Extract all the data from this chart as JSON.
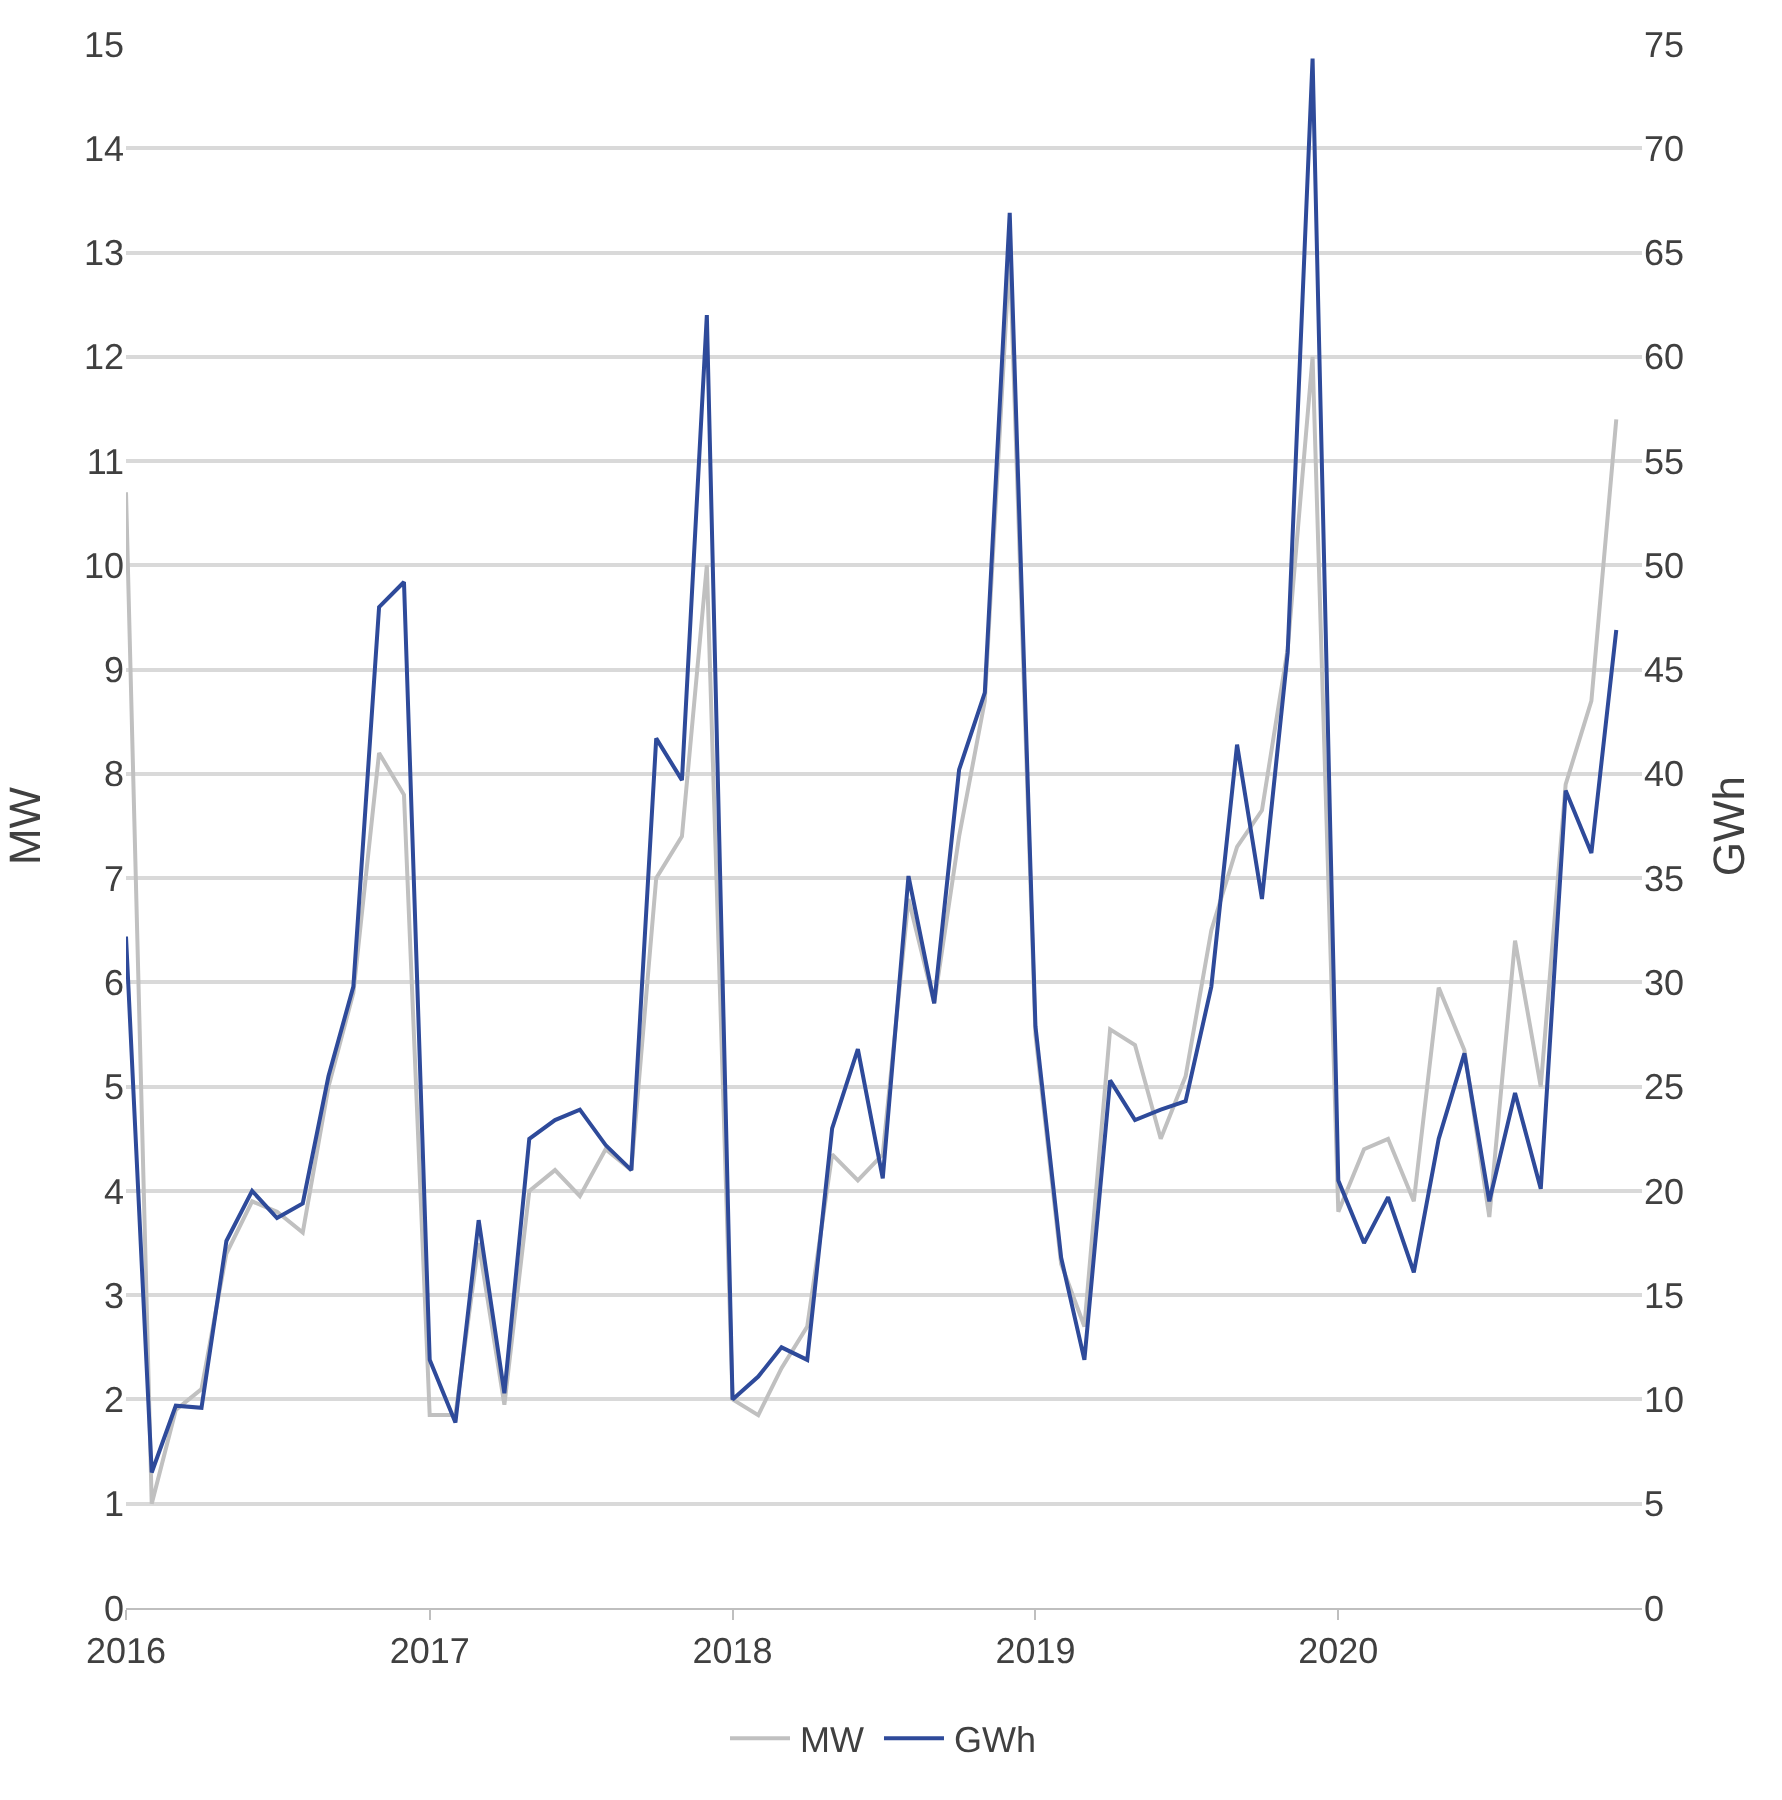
{
  "chart_data": {
    "type": "line",
    "ylabel": "MW",
    "y2label": "GWh",
    "x": [
      "2016-01",
      "2016-02",
      "2016-03",
      "2016-04",
      "2016-05",
      "2016-06",
      "2016-07",
      "2016-08",
      "2016-09",
      "2016-10",
      "2016-11",
      "2016-12",
      "2017-01",
      "2017-02",
      "2017-03",
      "2017-04",
      "2017-05",
      "2017-06",
      "2017-07",
      "2017-08",
      "2017-09",
      "2017-10",
      "2017-11",
      "2017-12",
      "2018-01",
      "2018-02",
      "2018-03",
      "2018-04",
      "2018-05",
      "2018-06",
      "2018-07",
      "2018-08",
      "2018-09",
      "2018-10",
      "2018-11",
      "2018-12",
      "2019-01",
      "2019-02",
      "2019-03",
      "2019-04",
      "2019-05",
      "2019-06",
      "2019-07",
      "2019-08",
      "2019-09",
      "2019-10",
      "2019-11",
      "2019-12",
      "2020-01",
      "2020-02",
      "2020-03",
      "2020-04",
      "2020-05",
      "2020-06",
      "2020-07",
      "2020-08",
      "2020-09",
      "2020-10",
      "2020-11",
      "2020-12"
    ],
    "series": [
      {
        "name": "MW",
        "color": "#c0c0c0",
        "values": [
          10.7,
          1.0,
          1.9,
          2.1,
          3.4,
          3.9,
          3.8,
          3.6,
          5.0,
          5.9,
          8.2,
          7.8,
          1.85,
          1.85,
          3.5,
          1.95,
          4.0,
          4.2,
          3.95,
          4.4,
          4.2,
          7.0,
          7.4,
          10.0,
          2.0,
          1.85,
          2.3,
          2.7,
          4.35,
          4.1,
          4.35,
          6.8,
          5.8,
          7.4,
          8.7,
          13.0,
          5.5,
          3.3,
          2.7,
          5.55,
          5.4,
          4.5,
          5.1,
          6.5,
          7.3,
          7.65,
          9.2,
          12.0,
          3.8,
          4.4,
          4.5,
          3.9,
          5.95,
          5.35,
          3.75,
          6.4,
          5.0,
          7.9,
          8.7,
          11.4
        ]
      },
      {
        "name": "GWh",
        "color": "#2e4a9a",
        "axis": "y2",
        "values": [
          32.2,
          6.5,
          9.7,
          9.6,
          17.6,
          20.0,
          18.7,
          19.4,
          25.5,
          29.8,
          48.0,
          49.2,
          11.9,
          8.9,
          18.6,
          10.3,
          22.5,
          23.4,
          23.9,
          22.2,
          21.0,
          41.7,
          39.7,
          62.0,
          10.0,
          11.1,
          12.5,
          11.9,
          23.0,
          26.8,
          20.6,
          35.1,
          29.0,
          40.2,
          43.9,
          66.9,
          27.9,
          16.8,
          11.9,
          25.3,
          23.4,
          23.9,
          24.3,
          29.8,
          41.4,
          34.0,
          45.8,
          74.3,
          20.5,
          17.5,
          19.7,
          16.1,
          22.5,
          26.6,
          19.5,
          24.7,
          20.1,
          39.2,
          36.2,
          46.9
        ]
      }
    ],
    "xlim": [
      "2016-01",
      "2021-01"
    ],
    "xticks": [
      "2016",
      "2017",
      "2018",
      "2019",
      "2020"
    ],
    "ylim": [
      0,
      15
    ],
    "yticks": [
      0,
      1,
      2,
      3,
      4,
      5,
      6,
      7,
      8,
      9,
      10,
      11,
      12,
      13,
      14,
      15
    ],
    "y2lim": [
      0,
      75
    ],
    "y2ticks": [
      0,
      5,
      10,
      15,
      20,
      25,
      30,
      35,
      40,
      45,
      50,
      55,
      60,
      65,
      70,
      75
    ],
    "grid": "y",
    "legend": "bottom",
    "line_style": "solid"
  }
}
